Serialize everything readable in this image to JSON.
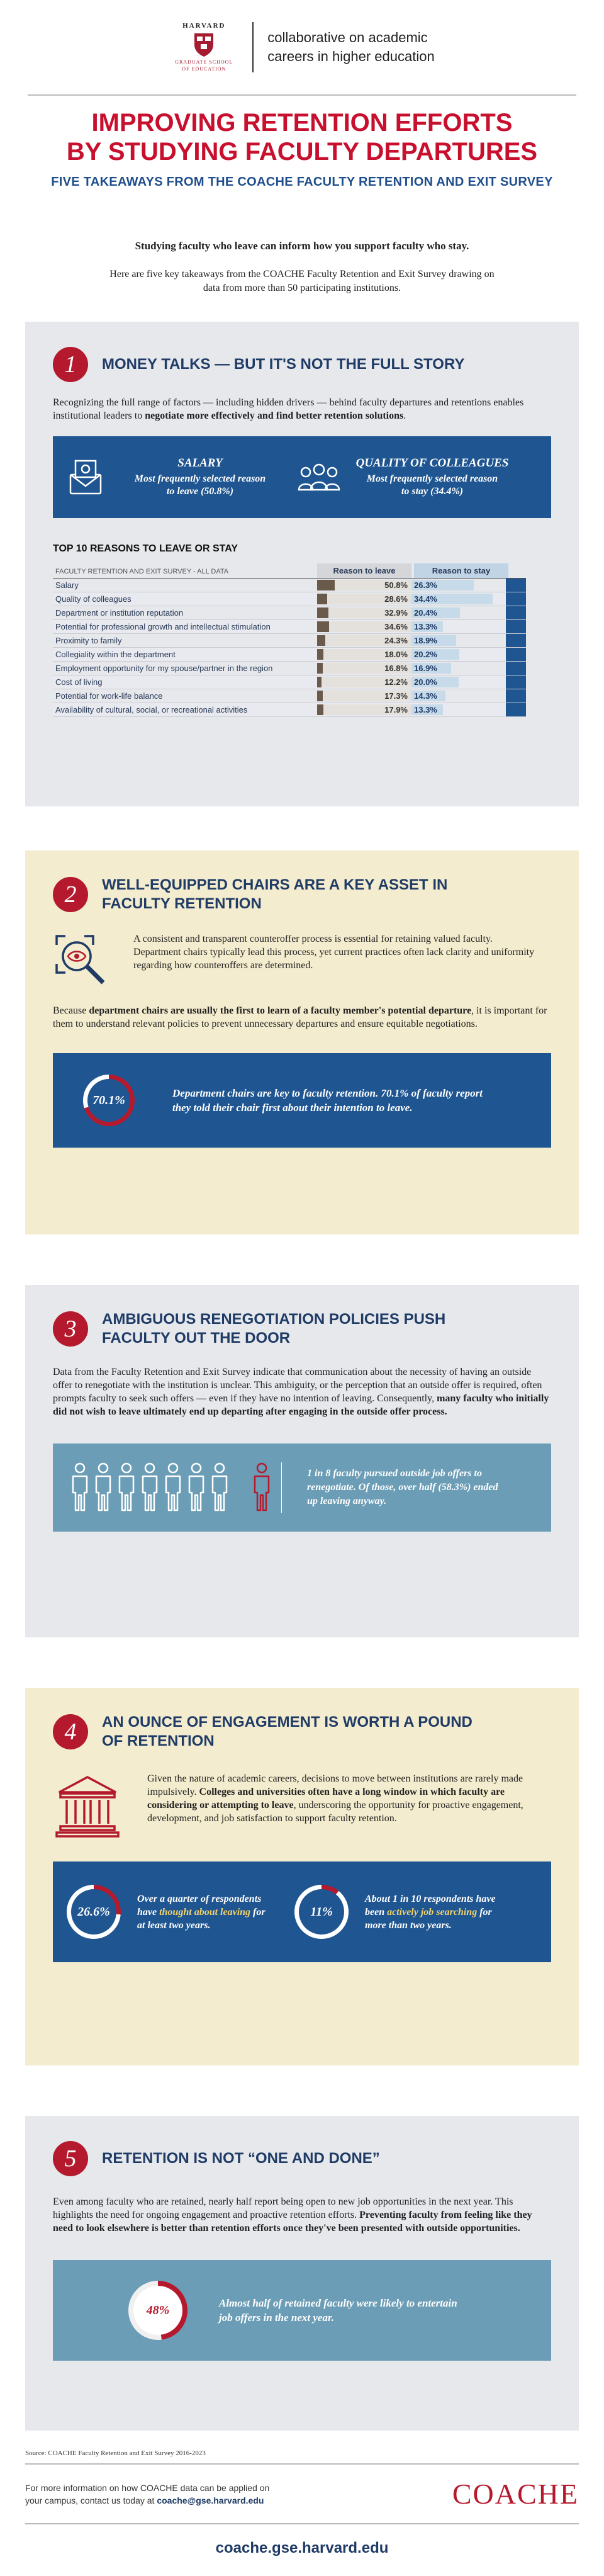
{
  "header": {
    "harvard": "HARVARD",
    "school_line1": "GRADUATE SCHOOL",
    "school_line2": "OF EDUCATION",
    "collab_line1": "collaborative on academic",
    "collab_line2": "careers in higher education"
  },
  "title_line1": "IMPROVING RETENTION EFFORTS",
  "title_line2": "BY STUDYING FACULTY DEPARTURES",
  "subtitle": "FIVE TAKEAWAYS FROM THE COACHE FACULTY RETENTION AND EXIT SURVEY",
  "intro_bold": "Studying faculty who leave can inform how you support faculty who stay.",
  "intro": "Here are five key takeaways from the COACHE Faculty Retention and Exit Survey drawing on data from more than 50 participating institutions.",
  "s1": {
    "num": "1",
    "title": "MONEY TALKS — BUT IT'S NOT THE FULL STORY",
    "text_a": "Recognizing the full range of factors — including hidden drivers — behind faculty departures and retentions enables institutional leaders to ",
    "text_bold": "negotiate more effectively and find better retention solutions",
    "text_end": ".",
    "salary_title": "SALARY",
    "salary_text": "Most frequently selected reason to leave (50.8%)",
    "quality_title": "QUALITY OF COLLEAGUES",
    "quality_text": "Most frequently selected reason to stay (34.4%)",
    "table_title": "TOP 10 REASONS TO LEAVE OR STAY",
    "table_caption": "FACULTY RETENTION AND EXIT SURVEY - ALL DATA",
    "col_leave": "Reason to leave",
    "col_stay": "Reason to stay"
  },
  "chart_data": {
    "type": "table",
    "title": "TOP 10 REASONS TO LEAVE OR STAY",
    "columns": [
      "Reason to leave",
      "Reason to stay"
    ],
    "rows": [
      {
        "label": "Salary",
        "leave": 50.8,
        "stay": 26.3,
        "leave_text": "50.8%",
        "stay_text": "26.3%"
      },
      {
        "label": "Quality of colleagues",
        "leave": 28.6,
        "stay": 34.4,
        "leave_text": "28.6%",
        "stay_text": "34.4%"
      },
      {
        "label": "Department or institution reputation",
        "leave": 32.9,
        "stay": 20.4,
        "leave_text": "32.9%",
        "stay_text": "20.4%"
      },
      {
        "label": "Potential for professional growth and intellectual stimulation",
        "leave": 34.6,
        "stay": 13.3,
        "leave_text": "34.6%",
        "stay_text": "13.3%"
      },
      {
        "label": "Proximity to family",
        "leave": 24.3,
        "stay": 18.9,
        "leave_text": "24.3%",
        "stay_text": "18.9%"
      },
      {
        "label": "Collegiality within the department",
        "leave": 18.0,
        "stay": 20.2,
        "leave_text": "18.0%",
        "stay_text": "20.2%"
      },
      {
        "label": "Employment opportunity for my spouse/partner in the region",
        "leave": 16.8,
        "stay": 16.9,
        "leave_text": "16.8%",
        "stay_text": "16.9%"
      },
      {
        "label": "Cost of living",
        "leave": 12.2,
        "stay": 20.0,
        "leave_text": "12.2%",
        "stay_text": "20.0%"
      },
      {
        "label": "Potential for work-life balance",
        "leave": 17.3,
        "stay": 14.3,
        "leave_text": "17.3%",
        "stay_text": "14.3%"
      },
      {
        "label": "Availability of cultural, social, or recreational activities",
        "leave": 17.9,
        "stay": 13.3,
        "leave_text": "17.9%",
        "stay_text": "13.3%"
      }
    ]
  },
  "s2": {
    "num": "2",
    "title_line1": "WELL-EQUIPPED CHAIRS ARE A KEY ASSET IN",
    "title_line2": "FACULTY RETENTION",
    "text1": "A consistent and transparent counteroffer process is essential for retaining valued faculty. Department chairs typically lead this process, yet current practices often lack clarity and uniformity regarding how counteroffers are determined.",
    "text2_a": "Because ",
    "text2_bold": "department chairs are usually the first to learn of a faculty member's potential departure",
    "text2_end": ", it is important for them to understand relevant policies to prevent unnecessary departures and ensure equitable negotiations.",
    "ring_value": 70.1,
    "ring_label": "70.1%",
    "box_text": "Department chairs are key to faculty retention. 70.1% of faculty report they told their chair first about their intention to leave."
  },
  "s3": {
    "num": "3",
    "title_line1": "AMBIGUOUS RENEGOTIATION POLICIES PUSH",
    "title_line2": "FACULTY OUT THE DOOR",
    "text_a": "Data from the Faculty Retention and Exit Survey indicate that communication about the necessity of having an outside offer to renegotiate with the institution is unclear. This ambiguity, or the perception that an outside offer is required, often prompts faculty to seek such offers — even if they have no intention of leaving. Consequently, ",
    "text_bold": "many faculty who initially did not wish to leave ultimately end up departing after engaging in the outside offer process.",
    "box_text": "1 in 8 faculty pursued outside job offers to renegotiate. Of those, over half (58.3%) ended up leaving anyway."
  },
  "s4": {
    "num": "4",
    "title_line1": "AN OUNCE OF ENGAGEMENT IS WORTH A POUND",
    "title_line2": "OF RETENTION",
    "text_a": "Given the nature of academic careers, decisions to move between institutions are rarely made impulsively. ",
    "text_bold": "Colleges and universities often have a long window in which faculty are considering or attempting to leave",
    "text_end": ", underscoring the opportunity for proactive engagement, development, and job satisfaction to support faculty retention.",
    "ring1_value": 26.6,
    "ring1_label": "26.6%",
    "stat1_a": "Over a quarter of respondents have ",
    "stat1_hl": "thought about leaving",
    "stat1_b": " for at least two years.",
    "ring2_value": 11,
    "ring2_label": "11%",
    "stat2_a": "About 1 in 10 respondents have been ",
    "stat2_hl": "actively job searching",
    "stat2_b": " for more than two years."
  },
  "s5": {
    "num": "5",
    "title": "RETENTION IS NOT “ONE AND DONE”",
    "text_a": "Even among faculty who are retained, nearly half report being open to new job opportunities in the next year. This highlights the need for ongoing engagement and proactive retention efforts. ",
    "text_bold": "Preventing faculty from feeling like they need to look elsewhere is better than retention efforts once they've been presented with outside opportunities.",
    "ring_value": 48,
    "ring_label": "48%",
    "box_text": "Almost half of retained faculty were likely to entertain job offers in the next year."
  },
  "footer": {
    "source": "Source: COACHE Faculty Retention and Exit Survey 2016-2023",
    "contact_a": "For more information on how COACHE data can be applied on",
    "contact_b": "your campus, contact us today at ",
    "email": "coache@gse.harvard.edu",
    "logo": "COACHE",
    "site": "coache.gse.harvard.edu"
  },
  "colors": {
    "red": "#b5192d",
    "navy": "#1f3b66",
    "blue": "#1f5590",
    "light_blue": "#6b9db6",
    "highlight": "#f1d36b"
  }
}
